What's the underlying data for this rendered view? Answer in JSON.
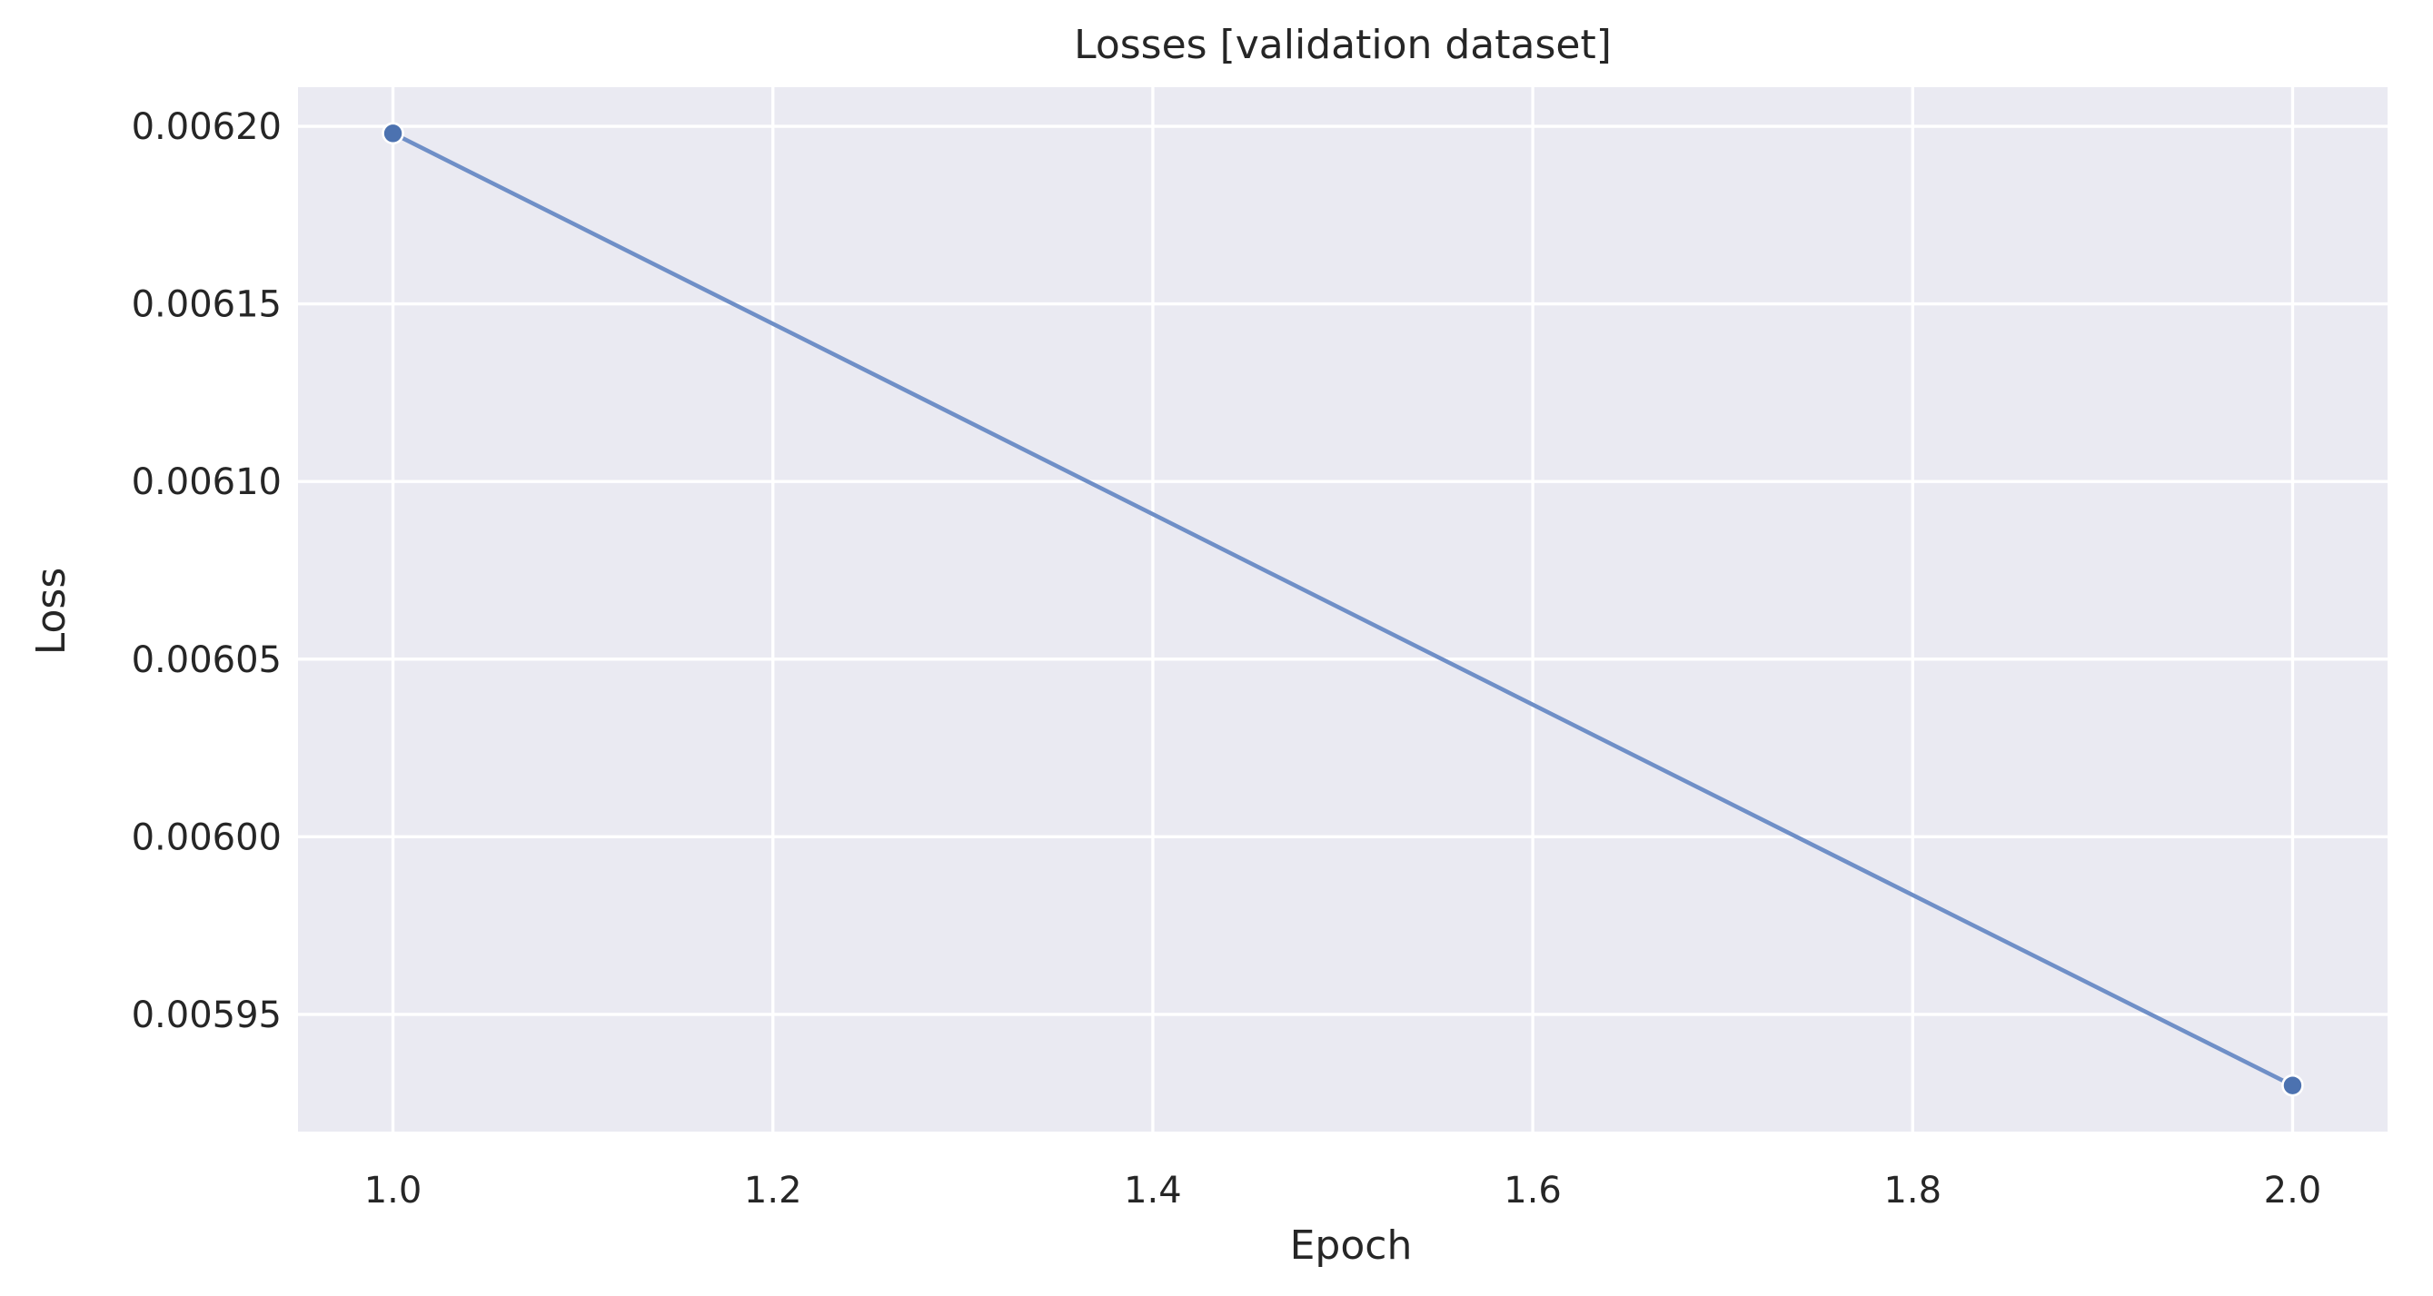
{
  "chart_data": {
    "type": "line",
    "title": "Losses [validation dataset]",
    "xlabel": "Epoch",
    "ylabel": "Loss",
    "x": [
      1.0,
      2.0
    ],
    "series": [
      {
        "values": [
          0.006198,
          0.00593
        ]
      }
    ],
    "xlim": [
      0.95,
      2.05
    ],
    "ylim": [
      0.005917,
      0.006211
    ],
    "xticks": [
      1.0,
      1.2,
      1.4,
      1.6,
      1.8,
      2.0
    ],
    "xtick_labels": [
      "1.0",
      "1.2",
      "1.4",
      "1.6",
      "1.8",
      "2.0"
    ],
    "yticks": [
      0.00595,
      0.006,
      0.00605,
      0.0061,
      0.00615,
      0.0062
    ],
    "ytick_labels": [
      "0.00595",
      "0.00600",
      "0.00605",
      "0.00610",
      "0.00615",
      "0.00620"
    ],
    "grid": true,
    "colors": {
      "background": "#eaeaf2",
      "grid": "#ffffff",
      "line": "#6f8fc7",
      "marker": "#4c72b0",
      "text": "#262626"
    }
  }
}
